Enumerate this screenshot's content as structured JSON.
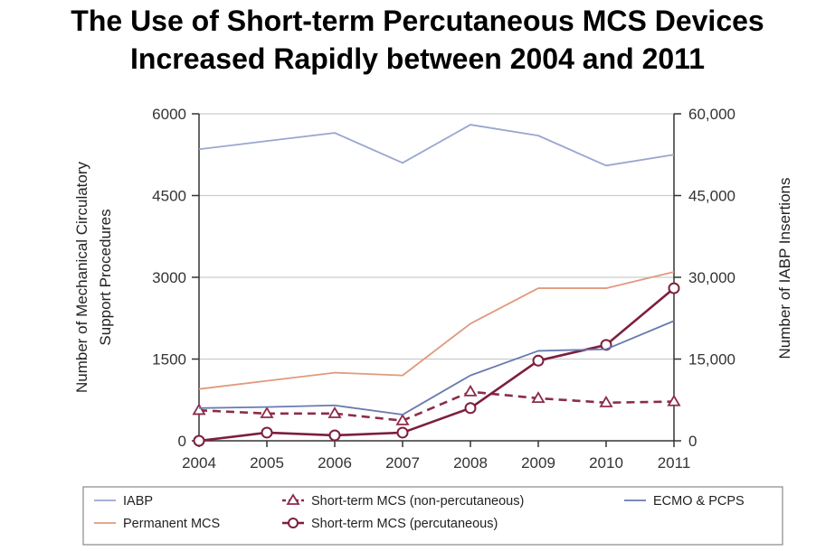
{
  "title": {
    "line1": "The Use of Short-term  Percutaneous MCS Devices",
    "line2": "Increased Rapidly between 2004 and 2011"
  },
  "colors": {
    "iabp": "#9aa6d0",
    "permanent": "#e09a7e",
    "nonperc": "#8b2c4a",
    "perc": "#7d1f3c",
    "ecmo": "#6a7ab0",
    "grid": "#cccccc",
    "axis": "#333333"
  },
  "chart_data": {
    "type": "line",
    "title": "The Use of Short-term  Percutaneous MCS Devices Increased Rapidly between 2004 and 2011",
    "x": [
      "2004",
      "2005",
      "2006",
      "2007",
      "2008",
      "2009",
      "2010",
      "2011"
    ],
    "ylabel_lines": [
      "Number of Mechanical Circulatory",
      "Support Procedures"
    ],
    "y2label": "Number of IABP Insertions",
    "ylim": [
      0,
      6000
    ],
    "y2lim": [
      0,
      60000
    ],
    "yticks": [
      "0",
      "1500",
      "3000",
      "4500",
      "6000"
    ],
    "y2ticks": [
      "0",
      "15,000",
      "30,000",
      "45,000",
      "60,000"
    ],
    "grid": true,
    "legend_position": "bottom",
    "series": [
      {
        "key": "iabp",
        "name": "IABP",
        "axis": "right",
        "style": "solid",
        "marker": "none",
        "values": [
          53500,
          55000,
          56500,
          51000,
          58000,
          56000,
          50500,
          52500
        ]
      },
      {
        "key": "permanent",
        "name": "Permanent MCS",
        "axis": "left",
        "style": "solid",
        "marker": "none",
        "values": [
          950,
          1100,
          1250,
          1200,
          2150,
          2800,
          2800,
          3100
        ]
      },
      {
        "key": "nonperc",
        "name": "Short-term MCS (non-percutaneous)",
        "axis": "left",
        "style": "dashed",
        "marker": "triangle",
        "values": [
          560,
          500,
          500,
          370,
          900,
          780,
          700,
          720
        ]
      },
      {
        "key": "perc",
        "name": "Short-term MCS (percutaneous)",
        "axis": "left",
        "style": "solid",
        "marker": "circle",
        "values": [
          0,
          150,
          100,
          150,
          600,
          1470,
          1760,
          2800
        ]
      },
      {
        "key": "ecmo",
        "name": "ECMO & PCPS",
        "axis": "left",
        "style": "solid",
        "marker": "none",
        "values": [
          600,
          620,
          650,
          480,
          1200,
          1650,
          1680,
          2200
        ]
      }
    ]
  }
}
